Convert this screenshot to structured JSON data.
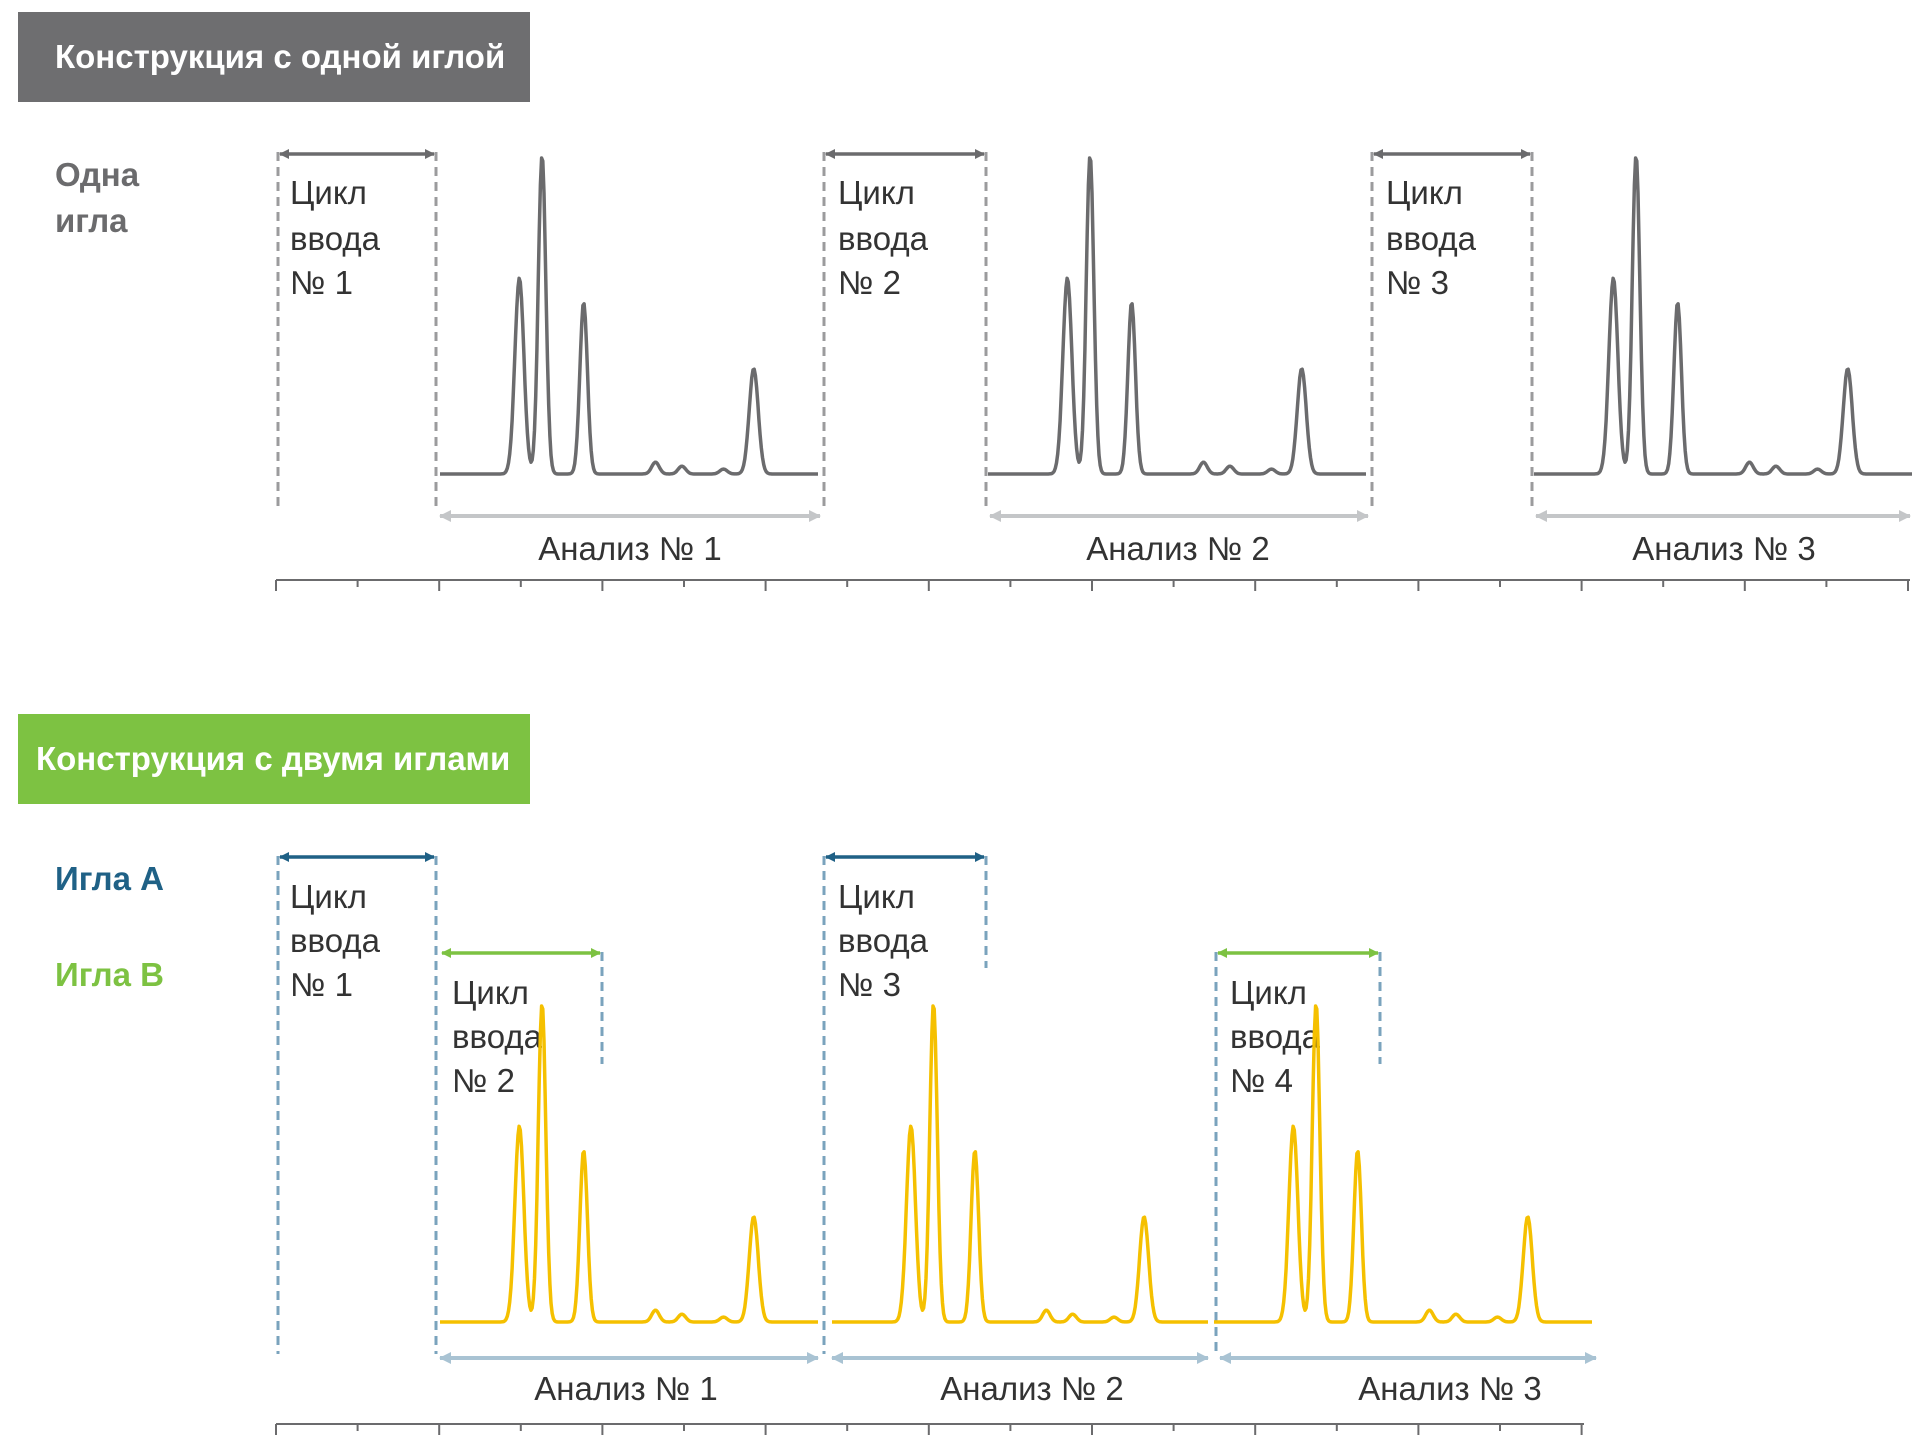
{
  "colors": {
    "single_banner": "#6e6e70",
    "dual_banner": "#7dc242",
    "needle_a": "#1f6186",
    "needle_b": "#7dc242",
    "gray_trace": "#6b6b6d",
    "yellow_trace": "#f5c000",
    "analysis_arrow_gray": "#c4c6c8",
    "analysis_arrow_blue": "#a9c3d3",
    "dashed_gray": "#9b9b9d",
    "dashed_blue": "#7aa3bd",
    "axis": "#6b6b6d",
    "text": "#333333"
  },
  "single": {
    "title": "Конструкция с одной иглой",
    "label_line1": "Одна",
    "label_line2": "игла",
    "cycles": [
      {
        "l1": "Цикл",
        "l2": "ввода",
        "l3": "№ 1"
      },
      {
        "l1": "Цикл",
        "l2": "ввода",
        "l3": "№ 2"
      },
      {
        "l1": "Цикл",
        "l2": "ввода",
        "l3": "№ 3"
      }
    ],
    "analyses": [
      "Анализ № 1",
      "Анализ № 2",
      "Анализ № 3"
    ]
  },
  "dual": {
    "title": "Конструкция с двумя иглами",
    "needle_a_label": "Игла A",
    "needle_b_label": "Игла B",
    "cycles": [
      {
        "l1": "Цикл",
        "l2": "ввода",
        "l3": "№ 1"
      },
      {
        "l1": "Цикл",
        "l2": "ввода",
        "l3": "№ 2"
      },
      {
        "l1": "Цикл",
        "l2": "ввода",
        "l3": "№ 3"
      },
      {
        "l1": "Цикл",
        "l2": "ввода",
        "l3": "№ 4"
      }
    ],
    "analyses": [
      "Анализ № 1",
      "Анализ № 2",
      "Анализ № 3"
    ]
  }
}
